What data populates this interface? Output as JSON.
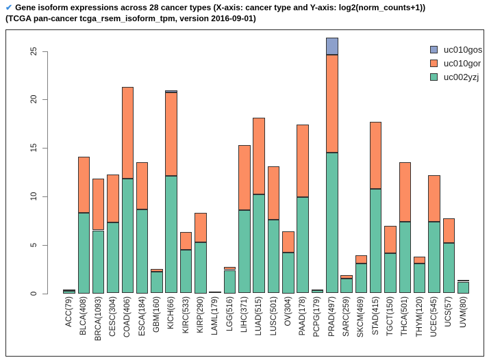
{
  "title": {
    "check_icon": "✔",
    "check_color": "#3a8dde",
    "line1": "Gene isoform expressions across 28 cancer types (X-axis: cancer type and Y-axis: log2(norm_counts+1))",
    "line2": "(TCGA pan-cancer tcga_rsem_isoform_tpm, version 2016-09-01)"
  },
  "legend": [
    {
      "label": "uc010gos",
      "color": "#8DA0CB"
    },
    {
      "label": "uc010gor",
      "color": "#FC8D62"
    },
    {
      "label": "uc002yzj",
      "color": "#66C2A5"
    }
  ],
  "colors": {
    "bar_border": "#333333",
    "axis": "#7f7f7f",
    "frame": "#2b2b2b"
  },
  "chart_data": {
    "type": "bar",
    "stacked": true,
    "title": "Gene isoform expressions across 28 cancer types",
    "xlabel": "cancer type",
    "ylabel": "log2(norm_counts+1)",
    "ylim": [
      0,
      25
    ],
    "yticks": [
      0,
      5,
      10,
      15,
      20,
      25
    ],
    "grid": false,
    "legend_position": "top-right",
    "categories": [
      "ACC(79)",
      "BLCA(408)",
      "BRCA(1093)",
      "CESC(304)",
      "COAD(406)",
      "ESCA(184)",
      "GBM(160)",
      "KICH(66)",
      "KIRC(533)",
      "KIRP(290)",
      "LAML(179)",
      "LGG(516)",
      "LIHC(371)",
      "LUAD(515)",
      "LUSC(501)",
      "OV(304)",
      "PAAD(178)",
      "PCPG(179)",
      "PRAD(497)",
      "SARC(259)",
      "SKCM(469)",
      "STAD(415)",
      "TGCT(150)",
      "THCA(501)",
      "THYM(120)",
      "UCEC(545)",
      "UCS(57)",
      "UVM(80)"
    ],
    "series": [
      {
        "name": "uc002yzj",
        "color": "#66C2A5",
        "values": [
          0.25,
          8.3,
          6.5,
          7.3,
          11.8,
          8.65,
          2.2,
          12.1,
          4.5,
          5.3,
          0.15,
          2.4,
          8.6,
          10.2,
          7.6,
          4.2,
          9.9,
          0.3,
          14.5,
          1.5,
          3.1,
          10.8,
          4.15,
          7.4,
          3.1,
          7.4,
          5.2,
          1.2
        ]
      },
      {
        "name": "uc010gor",
        "color": "#FC8D62",
        "values": [
          0.15,
          5.8,
          5.35,
          4.95,
          9.5,
          4.85,
          0.3,
          8.6,
          1.8,
          3.0,
          0.05,
          0.3,
          6.7,
          7.9,
          5.5,
          2.2,
          7.5,
          0.1,
          10.1,
          0.4,
          0.8,
          6.9,
          2.8,
          6.1,
          0.7,
          4.8,
          2.55,
          0.2
        ]
      },
      {
        "name": "uc010gos",
        "color": "#8DA0CB",
        "values": [
          0,
          0,
          0,
          0,
          0,
          0,
          0,
          0.25,
          0,
          0,
          0,
          0,
          0,
          0,
          0,
          0,
          0,
          0,
          1.75,
          0,
          0,
          0,
          0,
          0,
          0,
          0,
          0,
          0
        ]
      }
    ]
  }
}
